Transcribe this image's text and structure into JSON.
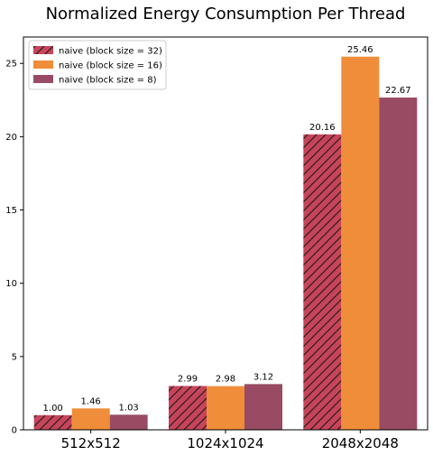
{
  "chart_data": {
    "type": "bar",
    "title": "Normalized Energy Consumption Per Thread",
    "xlabel": "",
    "ylabel": "",
    "categories": [
      "512x512",
      "1024x1024",
      "2048x2048"
    ],
    "ylim": [
      0,
      26.8
    ],
    "yticks": [
      0,
      5,
      10,
      15,
      20,
      25
    ],
    "grid": false,
    "legend_position": "top-left",
    "series": [
      {
        "name": "naive (block size = 32)",
        "values": [
          1.0,
          2.99,
          20.16
        ],
        "labels": [
          "1.00",
          "2.99",
          "20.16"
        ],
        "color": "#c9445a",
        "hatch": true
      },
      {
        "name": "naive (block size = 16)",
        "values": [
          1.46,
          2.98,
          25.46
        ],
        "labels": [
          "1.46",
          "2.98",
          "25.46"
        ],
        "color": "#f08d3a",
        "hatch": false
      },
      {
        "name": "naive (block size = 8)",
        "values": [
          1.03,
          3.12,
          22.67
        ],
        "labels": [
          "1.03",
          "3.12",
          "22.67"
        ],
        "color": "#984b63",
        "hatch": false
      }
    ]
  }
}
